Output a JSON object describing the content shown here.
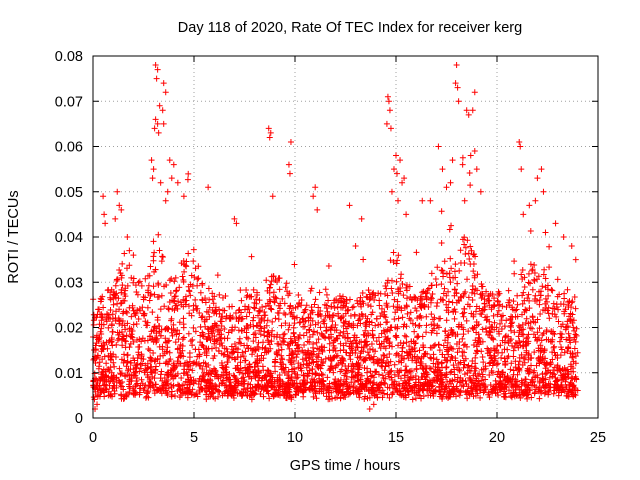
{
  "chart_data": {
    "type": "scatter",
    "title": "Day 118 of 2020, Rate Of TEC Index for receiver kerg",
    "xlabel": "GPS time / hours",
    "ylabel": "ROTI / TECUs",
    "xlim": [
      0,
      25
    ],
    "ylim": [
      0,
      0.08
    ],
    "x_ticks": [
      0,
      5,
      10,
      15,
      20,
      25
    ],
    "y_ticks": [
      0,
      0.01,
      0.02,
      0.03,
      0.04,
      0.05,
      0.06,
      0.07,
      0.08
    ],
    "x_tick_labels": [
      "0",
      "5",
      "10",
      "15",
      "20",
      "25"
    ],
    "y_tick_labels": [
      "0",
      "0.01",
      "0.02",
      "0.03",
      "0.04",
      "0.05",
      "0.06",
      "0.07",
      "0.08"
    ],
    "grid": true,
    "legend": "none",
    "marker": "plus",
    "series": [
      {
        "color": "#ff0000",
        "points": [
          [
            3.1,
            0.078
          ],
          [
            3.2,
            0.077
          ],
          [
            3.15,
            0.075
          ],
          [
            3.5,
            0.074
          ],
          [
            3.6,
            0.072
          ],
          [
            3.3,
            0.069
          ],
          [
            3.45,
            0.068
          ],
          [
            3.1,
            0.066
          ],
          [
            3.2,
            0.065
          ],
          [
            3.5,
            0.065
          ],
          [
            3.05,
            0.064
          ],
          [
            3.25,
            0.063
          ],
          [
            2.9,
            0.057
          ],
          [
            3.0,
            0.055
          ],
          [
            3.8,
            0.057
          ],
          [
            4.0,
            0.056
          ],
          [
            3.9,
            0.053
          ],
          [
            4.2,
            0.052
          ],
          [
            4.5,
            0.049
          ],
          [
            3.7,
            0.05
          ],
          [
            2.95,
            0.053
          ],
          [
            3.35,
            0.052
          ],
          [
            3.6,
            0.048
          ],
          [
            5.7,
            0.051
          ],
          [
            0.5,
            0.049
          ],
          [
            1.2,
            0.05
          ],
          [
            1.3,
            0.047
          ],
          [
            1.4,
            0.046
          ],
          [
            0.55,
            0.045
          ],
          [
            0.6,
            0.043
          ],
          [
            1.1,
            0.044
          ],
          [
            1.7,
            0.04
          ],
          [
            1.8,
            0.037
          ],
          [
            2.0,
            0.036
          ],
          [
            8.7,
            0.064
          ],
          [
            8.8,
            0.063
          ],
          [
            8.75,
            0.062
          ],
          [
            9.8,
            0.061
          ],
          [
            9.7,
            0.056
          ],
          [
            9.75,
            0.054
          ],
          [
            8.9,
            0.049
          ],
          [
            11.0,
            0.051
          ],
          [
            10.9,
            0.049
          ],
          [
            11.1,
            0.046
          ],
          [
            12.7,
            0.047
          ],
          [
            13.0,
            0.038
          ],
          [
            13.3,
            0.044
          ],
          [
            7.0,
            0.044
          ],
          [
            7.1,
            0.043
          ],
          [
            14.6,
            0.071
          ],
          [
            14.65,
            0.07
          ],
          [
            14.7,
            0.068
          ],
          [
            14.55,
            0.065
          ],
          [
            14.75,
            0.064
          ],
          [
            15.0,
            0.058
          ],
          [
            15.2,
            0.057
          ],
          [
            14.9,
            0.055
          ],
          [
            15.05,
            0.054
          ],
          [
            15.3,
            0.052
          ],
          [
            15.4,
            0.053
          ],
          [
            14.8,
            0.05
          ],
          [
            15.1,
            0.048
          ],
          [
            15.5,
            0.045
          ],
          [
            16.3,
            0.048
          ],
          [
            16.7,
            0.048
          ],
          [
            17.1,
            0.06
          ],
          [
            17.3,
            0.055
          ],
          [
            17.5,
            0.051
          ],
          [
            17.7,
            0.052
          ],
          [
            18.0,
            0.078
          ],
          [
            17.95,
            0.074
          ],
          [
            18.05,
            0.073
          ],
          [
            18.1,
            0.07
          ],
          [
            18.5,
            0.068
          ],
          [
            18.6,
            0.067
          ],
          [
            18.9,
            0.072
          ],
          [
            18.8,
            0.068
          ],
          [
            17.8,
            0.057
          ],
          [
            18.3,
            0.056
          ],
          [
            18.7,
            0.058
          ],
          [
            18.9,
            0.059
          ],
          [
            19.0,
            0.055
          ],
          [
            19.2,
            0.05
          ],
          [
            18.4,
            0.048
          ],
          [
            21.1,
            0.061
          ],
          [
            21.15,
            0.06
          ],
          [
            21.2,
            0.055
          ],
          [
            21.6,
            0.047
          ],
          [
            22.0,
            0.053
          ],
          [
            22.2,
            0.055
          ],
          [
            22.3,
            0.05
          ],
          [
            21.9,
            0.048
          ],
          [
            22.4,
            0.041
          ],
          [
            21.3,
            0.045
          ],
          [
            22.9,
            0.043
          ],
          [
            23.3,
            0.04
          ],
          [
            23.7,
            0.038
          ],
          [
            23.9,
            0.035
          ],
          [
            13.7,
            0.002
          ],
          [
            0.1,
            0.002
          ],
          [
            0.2,
            0.003
          ],
          [
            13.9,
            0.003
          ]
        ]
      }
    ]
  }
}
